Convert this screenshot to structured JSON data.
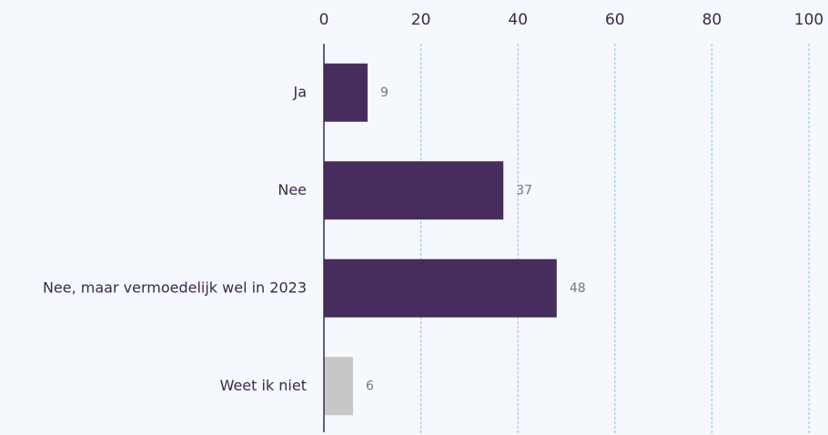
{
  "chart_data": {
    "type": "hbar",
    "categories": [
      "Ja",
      "Nee",
      "Nee, maar vermoedelijk wel in 2023",
      "Weet ik niet"
    ],
    "values": [
      9,
      37,
      48,
      6
    ],
    "colors": [
      "#472c5e",
      "#472c5e",
      "#472c5e",
      "#c7c7c7"
    ],
    "xlim": [
      0,
      100
    ],
    "xticks": [
      0,
      20,
      40,
      60,
      80,
      100
    ],
    "grid": true
  }
}
